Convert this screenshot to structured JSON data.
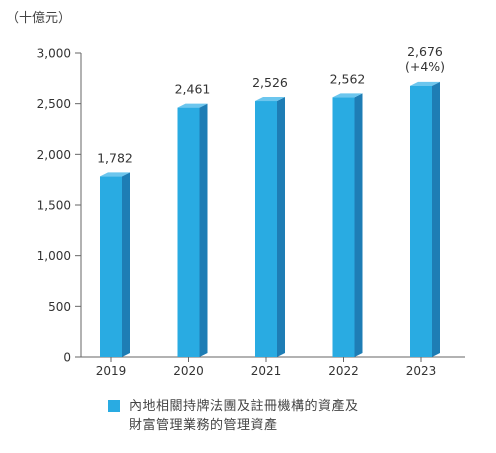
{
  "colors": {
    "bar_front": "#29ABE2",
    "bar_side": "#1E7DB5",
    "bar_top": "#6CC6EE",
    "axis": "#666666",
    "text": "#333333"
  },
  "chart_data": {
    "type": "bar",
    "unit_label": "（十億元）",
    "categories": [
      "2019",
      "2020",
      "2021",
      "2022",
      "2023"
    ],
    "series": [
      {
        "name": "內地相關持牌法團及註冊機構的資產及\n財富管理業務的管理資產",
        "values": [
          1782,
          2461,
          2526,
          2562,
          2676
        ]
      }
    ],
    "data_labels": [
      "1,782",
      "2,461",
      "2,526",
      "2,562",
      "2,676"
    ],
    "extra_labels": [
      "",
      "",
      "",
      "",
      "(+4%)"
    ],
    "yticks": [
      0,
      500,
      1000,
      1500,
      2000,
      2500,
      3000
    ],
    "ytick_labels": [
      "0",
      "500",
      "1,000",
      "1,500",
      "2,000",
      "2,500",
      "3,000"
    ],
    "ylim": [
      0,
      3000
    ],
    "grid": false,
    "legend_position": "bottom-left",
    "style": "3d-bar"
  }
}
